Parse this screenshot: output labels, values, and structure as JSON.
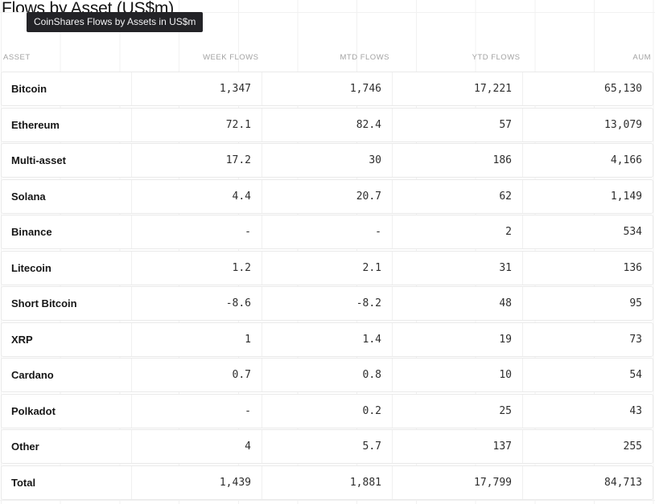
{
  "title": "Flows by Asset (US$m)",
  "tooltip": "CoinShares Flows by Assets in US$m",
  "colors": {
    "tooltip_bg": "#232327",
    "tooltip_text": "#f2f2f4",
    "header_text": "#a2a2a2",
    "asset_text": "#161616",
    "value_text": "#2e2e2e",
    "row_border": "#e9e9e9",
    "cell_divider": "#f0f0f0",
    "grid_line": "#f1f1f1",
    "canvas_bg": "#ffffff"
  },
  "table": {
    "headers": [
      "ASSET",
      "WEEK FLOWS",
      "MTD FLOWS",
      "YTD FLOWS",
      "AUM"
    ],
    "rows": [
      {
        "asset": "Bitcoin",
        "week_flows": "1,347",
        "mtd_flows": "1,746",
        "ytd_flows": "17,221",
        "aum": "65,130"
      },
      {
        "asset": "Ethereum",
        "week_flows": "72.1",
        "mtd_flows": "82.4",
        "ytd_flows": "57",
        "aum": "13,079"
      },
      {
        "asset": "Multi-asset",
        "week_flows": "17.2",
        "mtd_flows": "30",
        "ytd_flows": "186",
        "aum": "4,166"
      },
      {
        "asset": "Solana",
        "week_flows": "4.4",
        "mtd_flows": "20.7",
        "ytd_flows": "62",
        "aum": "1,149"
      },
      {
        "asset": "Binance",
        "week_flows": "-",
        "mtd_flows": "-",
        "ytd_flows": "2",
        "aum": "534"
      },
      {
        "asset": "Litecoin",
        "week_flows": "1.2",
        "mtd_flows": "2.1",
        "ytd_flows": "31",
        "aum": "136"
      },
      {
        "asset": "Short Bitcoin",
        "week_flows": "-8.6",
        "mtd_flows": "-8.2",
        "ytd_flows": "48",
        "aum": "95"
      },
      {
        "asset": "XRP",
        "week_flows": "1",
        "mtd_flows": "1.4",
        "ytd_flows": "19",
        "aum": "73"
      },
      {
        "asset": "Cardano",
        "week_flows": "0.7",
        "mtd_flows": "0.8",
        "ytd_flows": "10",
        "aum": "54"
      },
      {
        "asset": "Polkadot",
        "week_flows": "-",
        "mtd_flows": "0.2",
        "ytd_flows": "25",
        "aum": "43"
      },
      {
        "asset": "Other",
        "week_flows": "4",
        "mtd_flows": "5.7",
        "ytd_flows": "137",
        "aum": "255"
      },
      {
        "asset": "Total",
        "week_flows": "1,439",
        "mtd_flows": "1,881",
        "ytd_flows": "17,799",
        "aum": "84,713"
      }
    ]
  },
  "chart_data": {
    "type": "table",
    "title": "Flows by Asset (US$m)",
    "columns": [
      "ASSET",
      "WEEK FLOWS",
      "MTD FLOWS",
      "YTD FLOWS",
      "AUM"
    ],
    "rows": [
      [
        "Bitcoin",
        1347,
        1746,
        17221,
        65130
      ],
      [
        "Ethereum",
        72.1,
        82.4,
        57,
        13079
      ],
      [
        "Multi-asset",
        17.2,
        30,
        186,
        4166
      ],
      [
        "Solana",
        4.4,
        20.7,
        62,
        1149
      ],
      [
        "Binance",
        null,
        null,
        2,
        534
      ],
      [
        "Litecoin",
        1.2,
        2.1,
        31,
        136
      ],
      [
        "Short Bitcoin",
        -8.6,
        -8.2,
        48,
        95
      ],
      [
        "XRP",
        1,
        1.4,
        19,
        73
      ],
      [
        "Cardano",
        0.7,
        0.8,
        10,
        54
      ],
      [
        "Polkadot",
        null,
        0.2,
        25,
        43
      ],
      [
        "Other",
        4,
        5.7,
        137,
        255
      ],
      [
        "Total",
        1439,
        1881,
        17799,
        84713
      ]
    ]
  }
}
